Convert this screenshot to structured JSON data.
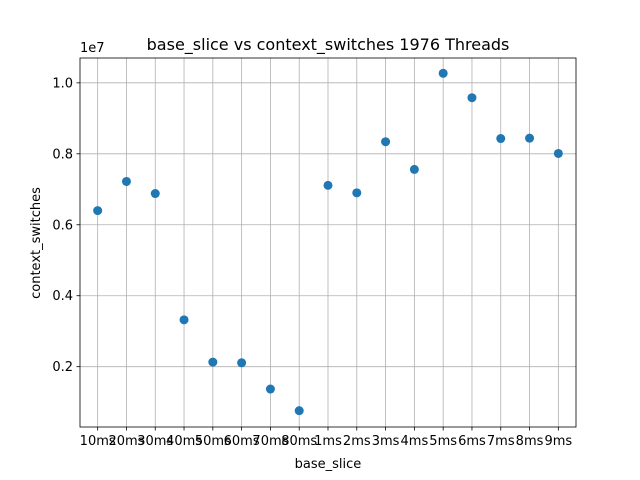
{
  "chart_data": {
    "type": "scatter",
    "title": "base_slice vs context_switches 1976 Threads",
    "xlabel": "base_slice",
    "ylabel": "context_switches",
    "y_offset_label": "1e7",
    "grid": true,
    "color": "#1f77b4",
    "categories": [
      "10ms",
      "20ms",
      "30ms",
      "40ms",
      "50ms",
      "60ms",
      "70ms",
      "80ms",
      "1ms",
      "2ms",
      "3ms",
      "4ms",
      "5ms",
      "6ms",
      "7ms",
      "8ms",
      "9ms"
    ],
    "values": [
      6400000,
      7220000,
      6880000,
      3320000,
      2130000,
      2110000,
      1370000,
      760000,
      7110000,
      6900000,
      8340000,
      7560000,
      10270000,
      9580000,
      8430000,
      8440000,
      8010000
    ],
    "ylim": [
      300000,
      10700000
    ],
    "y_ticks": [
      2000000,
      4000000,
      6000000,
      8000000,
      10000000
    ],
    "y_tick_labels": [
      "0.2",
      "0.4",
      "0.6",
      "0.8",
      "1.0"
    ]
  }
}
